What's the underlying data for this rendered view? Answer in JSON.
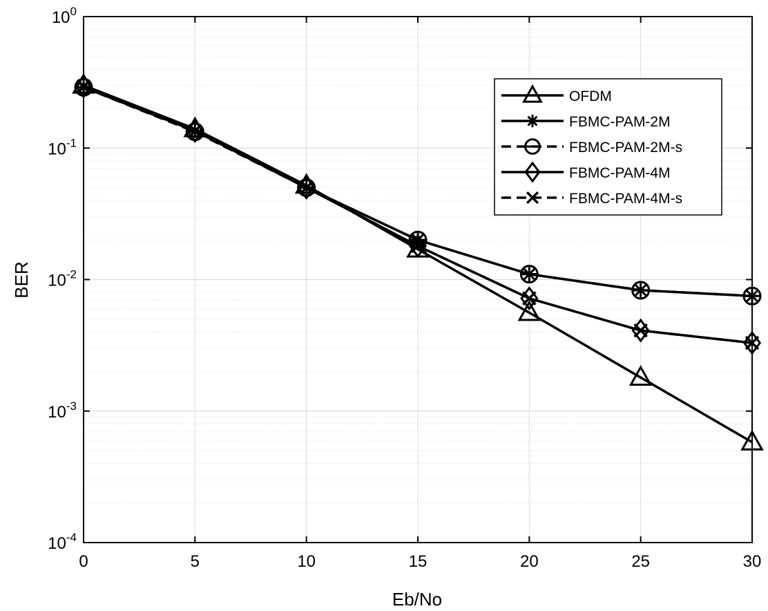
{
  "chart_data": {
    "type": "line",
    "xlabel": "Eb/No",
    "ylabel": "BER",
    "x": [
      0,
      5,
      10,
      15,
      20,
      25,
      30
    ],
    "xlim": [
      0,
      30
    ],
    "ylim": [
      0.0001,
      1
    ],
    "yscale": "log",
    "grid": true,
    "legend_position": "top-right",
    "x_tick_labels": [
      "0",
      "5",
      "10",
      "15",
      "20",
      "25",
      "30"
    ],
    "y_tick_labels": [
      {
        "base": "10",
        "exp": "-4"
      },
      {
        "base": "10",
        "exp": "-3"
      },
      {
        "base": "10",
        "exp": "-2"
      },
      {
        "base": "10",
        "exp": "-1"
      },
      {
        "base": "10",
        "exp": "0"
      }
    ],
    "series": [
      {
        "name": "OFDM",
        "marker": "triangle",
        "dash": "solid",
        "color": "#000000",
        "values": [
          0.3,
          0.14,
          0.052,
          0.017,
          0.0056,
          0.0018,
          0.00058
        ]
      },
      {
        "name": "FBMC-PAM-2M",
        "marker": "asterisk",
        "dash": "solid",
        "color": "#000000",
        "values": [
          0.29,
          0.135,
          0.05,
          0.02,
          0.011,
          0.0083,
          0.0075
        ]
      },
      {
        "name": "FBMC-PAM-2M-s",
        "marker": "circle",
        "dash": "dashed",
        "color": "#000000",
        "values": [
          0.29,
          0.133,
          0.05,
          0.02,
          0.011,
          0.0083,
          0.0075
        ]
      },
      {
        "name": "FBMC-PAM-4M",
        "marker": "diamond",
        "dash": "solid",
        "color": "#000000",
        "values": [
          0.295,
          0.135,
          0.05,
          0.018,
          0.0072,
          0.0041,
          0.0033
        ]
      },
      {
        "name": "FBMC-PAM-4M-s",
        "marker": "x",
        "dash": "dashed",
        "color": "#000000",
        "values": [
          0.295,
          0.135,
          0.05,
          0.018,
          0.0072,
          0.0041,
          0.0033
        ]
      }
    ]
  }
}
